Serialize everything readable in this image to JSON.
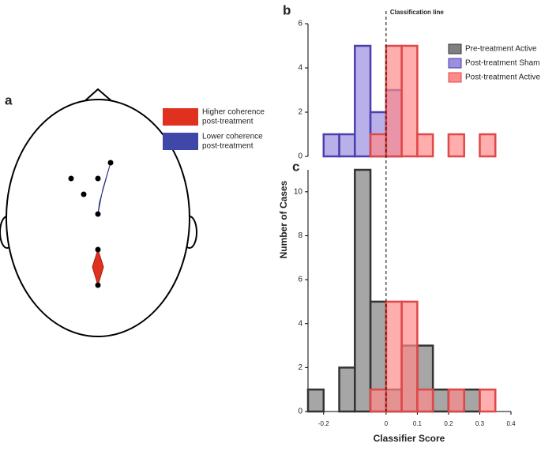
{
  "figure": {
    "panels": [
      "a",
      "b",
      "c"
    ],
    "legend": [
      {
        "lines": [
          "Higher coherence",
          "post-treatment"
        ],
        "color": "#e0301e"
      },
      {
        "lines": [
          "Lower coherence",
          "post-treatment"
        ],
        "color": "#3f48a8"
      }
    ],
    "y_label": "Number of Cases",
    "x_label": "Classifier Score",
    "annotation": {
      "text": "Classification line",
      "x": 0
    }
  },
  "chart_data": [
    {
      "type": "histogram",
      "xlim": [
        -0.25,
        0.4
      ],
      "ylim": [
        0,
        6
      ],
      "yticks": [
        0,
        2,
        4,
        6
      ],
      "legend": "upper right",
      "series": [
        {
          "name": "Pre-treatment Active",
          "color": "#808080",
          "stroke": "#333333",
          "bins": [],
          "values": []
        },
        {
          "name": "Post-treatment Sham",
          "color": "#9b8fe0",
          "stroke": "#4a3fb0",
          "bins": [
            -0.2,
            -0.15,
            -0.1,
            -0.05,
            0,
            0.05
          ],
          "values": [
            1,
            1,
            5,
            2,
            3
          ]
        },
        {
          "name": "Post-treatment Active",
          "color": "#ff8a8a",
          "stroke": "#e04848",
          "bins": [
            -0.05,
            0,
            0.05,
            0.1,
            0.15,
            0.2,
            0.25,
            0.3,
            0.35
          ],
          "values": [
            1,
            5,
            5,
            1,
            0,
            1,
            0,
            1
          ]
        }
      ]
    },
    {
      "type": "histogram",
      "xlim": [
        -0.25,
        0.4
      ],
      "xticks": [
        -0.2,
        0,
        0.1,
        0.2,
        0.3,
        0.4
      ],
      "ylim": [
        0,
        11
      ],
      "yticks": [
        0,
        2,
        4,
        6,
        8,
        10
      ],
      "series": [
        {
          "color": "#808080",
          "stroke": "#333333",
          "bins": [
            -0.25,
            -0.2,
            -0.15,
            -0.1,
            -0.05,
            0,
            0.05,
            0.1,
            0.15,
            0.2,
            0.25,
            0.3
          ],
          "values": [
            1,
            0,
            2,
            11,
            5,
            1,
            3,
            3,
            1,
            1,
            1
          ]
        },
        {
          "color": "#ff8a8a",
          "stroke": "#e04848",
          "bins": [
            -0.05,
            0,
            0.05,
            0.1,
            0.15,
            0.2,
            0.25,
            0.3,
            0.35
          ],
          "values": [
            1,
            5,
            5,
            1,
            0,
            1,
            0,
            1
          ]
        }
      ]
    }
  ]
}
